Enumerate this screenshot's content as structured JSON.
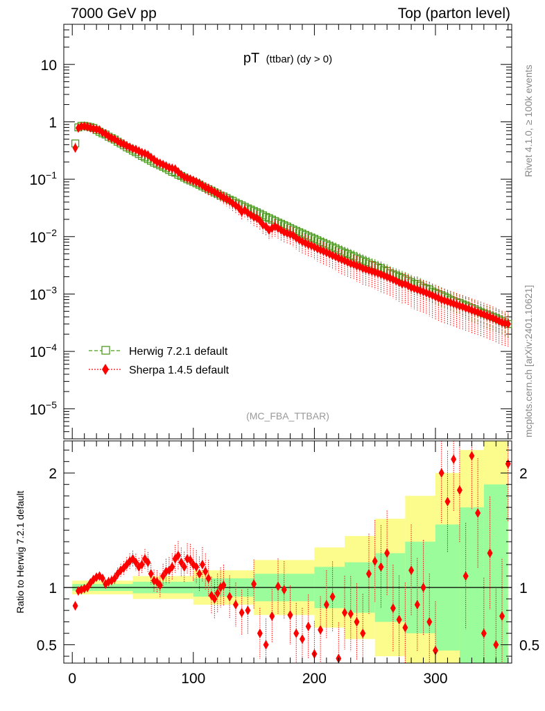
{
  "header": {
    "left": "7000 GeV pp",
    "right": "Top (parton level)"
  },
  "side_text": {
    "rivet": "Rivet 4.1.0, ≥ 100k events",
    "mcplots": "mcplots.cern.ch [arXiv:2401.10621]"
  },
  "colors": {
    "herwig": "#4a9a1e",
    "sherpa": "#ff0000",
    "band_inner": "#9afc9a",
    "band_outer": "#fcfc8c"
  },
  "chart_data": [
    {
      "type": "scatter",
      "title_main": "pT",
      "title_sub": "(ttbar)  (dy > 0)",
      "analysis_label": "(MC_FBA_TTBAR)",
      "yscale": "log",
      "ylim": [
        3e-06,
        50
      ],
      "xlim": [
        -7,
        363
      ],
      "ytick_labels": [
        "10^-5",
        "10^-4",
        "10^-3",
        "10^-2",
        "10^-1",
        "1",
        "10"
      ],
      "legend_position": "lower-left",
      "x": [
        2.5,
        5,
        7.5,
        10,
        12.5,
        15,
        17.5,
        20,
        22.5,
        25,
        27.5,
        30,
        32.5,
        35,
        37.5,
        40,
        42.5,
        45,
        47.5,
        50,
        52.5,
        55,
        57.5,
        60,
        62.5,
        65,
        67.5,
        70,
        72.5,
        75,
        77.5,
        80,
        82.5,
        85,
        87.5,
        90,
        92.5,
        95,
        97.5,
        100,
        102.5,
        105,
        107.5,
        110,
        112.5,
        115,
        117.5,
        120,
        122.5,
        125,
        127.5,
        130,
        132.5,
        135,
        137.5,
        140,
        142.5,
        145,
        147.5,
        150,
        152.5,
        155,
        157.5,
        160,
        162.5,
        165,
        167.5,
        170,
        172.5,
        175,
        177.5,
        180,
        182.5,
        185,
        187.5,
        190,
        192.5,
        195,
        197.5,
        200,
        202.5,
        205,
        207.5,
        210,
        212.5,
        215,
        217.5,
        220,
        222.5,
        225,
        227.5,
        230,
        232.5,
        235,
        237.5,
        240,
        242.5,
        245,
        247.5,
        250,
        252.5,
        255,
        257.5,
        260,
        262.5,
        265,
        267.5,
        270,
        272.5,
        275,
        277.5,
        280,
        282.5,
        285,
        287.5,
        290,
        292.5,
        295,
        297.5,
        300,
        302.5,
        305,
        307.5,
        310,
        312.5,
        315,
        317.5,
        320,
        322.5,
        325,
        327.5,
        330,
        332.5,
        335,
        337.5,
        340,
        342.5,
        345,
        347.5,
        350,
        352.5,
        355,
        357.5,
        360
      ],
      "series": [
        {
          "name": "Herwig 7.2.1 default",
          "marker": "open-square",
          "line": "dashed",
          "values": [
            0.42,
            0.8,
            0.85,
            0.85,
            0.83,
            0.81,
            0.78,
            0.72,
            0.67,
            0.63,
            0.6,
            0.55,
            0.52,
            0.49,
            0.45,
            0.42,
            0.39,
            0.36,
            0.34,
            0.315,
            0.295,
            0.275,
            0.255,
            0.24,
            0.225,
            0.21,
            0.195,
            0.185,
            0.175,
            0.165,
            0.155,
            0.145,
            0.135,
            0.13,
            0.12,
            0.114,
            0.107,
            0.1,
            0.095,
            0.09,
            0.085,
            0.08,
            0.075,
            0.071,
            0.067,
            0.063,
            0.059,
            0.056,
            0.052,
            0.05,
            0.047,
            0.044,
            0.042,
            0.039,
            0.037,
            0.035,
            0.033,
            0.031,
            0.0295,
            0.028,
            0.0265,
            0.025,
            0.0235,
            0.022,
            0.021,
            0.0198,
            0.0187,
            0.0176,
            0.0167,
            0.0158,
            0.015,
            0.0141,
            0.0133,
            0.0126,
            0.0119,
            0.0113,
            0.0107,
            0.0101,
            0.0096,
            0.0091,
            0.0086,
            0.0081,
            0.0077,
            0.0073,
            0.0069,
            0.0065,
            0.0062,
            0.0058,
            0.0055,
            0.0052,
            0.005,
            0.0047,
            0.0045,
            0.0042,
            0.004,
            0.0038,
            0.0036,
            0.0034,
            0.0032,
            0.0031,
            0.0029,
            0.0028,
            0.0026,
            0.0025,
            0.0023,
            0.0022,
            0.0021,
            0.002,
            0.0019,
            0.0018,
            0.0017,
            0.0016,
            0.0015,
            0.0015,
            0.0014,
            0.0013,
            0.00125,
            0.0012,
            0.0011,
            0.00105,
            0.001,
            0.00095,
            0.0009,
            0.00085,
            0.0008,
            0.00076,
            0.00072,
            0.0007,
            0.00066,
            0.00063,
            0.0006,
            0.00057,
            0.00054,
            0.00051,
            0.00048,
            0.00046,
            0.00044,
            0.00042,
            0.0004,
            0.00038,
            0.00036,
            0.00034,
            0.00032,
            0.0003
          ]
        },
        {
          "name": "Sherpa 1.4.5 default",
          "marker": "filled-diamond",
          "line": "dotted",
          "values": [
            0.35,
            0.78,
            0.83,
            0.84,
            0.82,
            0.79,
            0.76,
            0.74,
            0.72,
            0.65,
            0.62,
            0.56,
            0.52,
            0.5,
            0.46,
            0.43,
            0.41,
            0.38,
            0.36,
            0.34,
            0.33,
            0.31,
            0.29,
            0.28,
            0.265,
            0.24,
            0.22,
            0.2,
            0.19,
            0.18,
            0.17,
            0.16,
            0.155,
            0.15,
            0.135,
            0.12,
            0.11,
            0.105,
            0.1,
            0.095,
            0.09,
            0.085,
            0.078,
            0.072,
            0.068,
            0.064,
            0.06,
            0.056,
            0.052,
            0.048,
            0.045,
            0.042,
            0.038,
            0.035,
            0.032,
            0.027,
            0.029,
            0.026,
            0.024,
            0.022,
            0.021,
            0.019,
            0.016,
            0.015,
            0.013,
            0.014,
            0.015,
            0.014,
            0.013,
            0.012,
            0.0115,
            0.011,
            0.0105,
            0.0095,
            0.0088,
            0.0082,
            0.0078,
            0.0073,
            0.007,
            0.0066,
            0.0062,
            0.0059,
            0.0056,
            0.0053,
            0.005,
            0.0047,
            0.0045,
            0.0042,
            0.004,
            0.0038,
            0.0036,
            0.0034,
            0.0033,
            0.0031,
            0.003,
            0.0028,
            0.0027,
            0.0026,
            0.0025,
            0.0024,
            0.0023,
            0.0022,
            0.0021,
            0.002,
            0.0019,
            0.0018,
            0.0017,
            0.0016,
            0.0015,
            0.0015,
            0.0014,
            0.0013,
            0.00125,
            0.0012,
            0.00115,
            0.0011,
            0.00105,
            0.001,
            0.00095,
            0.0009,
            0.00085,
            0.0008,
            0.00077,
            0.00074,
            0.00071,
            0.00068,
            0.00065,
            0.00062,
            0.0006,
            0.00057,
            0.00055,
            0.00052,
            0.0005,
            0.00048,
            0.00046,
            0.00044,
            0.00042,
            0.0004,
            0.00038,
            0.00036,
            0.00034,
            0.00032,
            0.00031,
            0.0003
          ]
        }
      ]
    },
    {
      "type": "scatter",
      "ylabel": "Ratio to Herwig 7.2.1 default",
      "xlim": [
        -7,
        363
      ],
      "ylim": [
        0.34,
        2.28
      ],
      "xtick_labels": [
        "0",
        "100",
        "200",
        "300"
      ],
      "ytick_labels": [
        "0.5",
        "1",
        "2"
      ],
      "ref_line": 1,
      "band_edges": [
        0,
        50,
        100,
        150,
        200,
        225,
        250,
        275,
        300,
        320,
        340,
        360
      ],
      "band_inner": [
        0.03,
        0.05,
        0.08,
        0.12,
        0.18,
        0.22,
        0.3,
        0.4,
        0.55,
        0.7,
        0.9
      ],
      "band_outer": [
        0.06,
        0.1,
        0.15,
        0.24,
        0.35,
        0.45,
        0.6,
        0.8,
        1.0,
        1.2,
        1.5
      ],
      "series": [
        {
          "name": "Sherpa 1.4.5 default",
          "x": [
            2.5,
            5,
            7.5,
            10,
            12.5,
            15,
            17.5,
            20,
            22.5,
            25,
            27.5,
            30,
            32.5,
            35,
            37.5,
            40,
            42.5,
            45,
            47.5,
            50,
            52.5,
            55,
            57.5,
            60,
            62.5,
            65,
            67.5,
            70,
            72.5,
            75,
            77.5,
            80,
            82.5,
            85,
            87.5,
            90,
            92.5,
            95,
            97.5,
            100,
            102.5,
            105,
            107.5,
            110,
            112.5,
            115,
            117.5,
            120,
            122.5,
            125,
            130,
            135,
            140,
            145,
            150,
            155,
            160,
            165,
            170,
            175,
            180,
            185,
            190,
            195,
            200,
            205,
            210,
            215,
            220,
            225,
            230,
            235,
            240,
            245,
            250,
            255,
            260,
            265,
            270,
            275,
            280,
            285,
            290,
            295,
            300,
            305,
            310,
            315,
            320,
            325,
            330,
            335,
            340,
            345,
            350,
            355,
            360
          ],
          "values": [
            0.84,
            0.97,
            0.98,
            0.99,
            1.0,
            1.04,
            1.07,
            1.09,
            1.1,
            1.08,
            1.03,
            1.05,
            1.06,
            1.08,
            1.12,
            1.15,
            1.17,
            1.2,
            1.23,
            1.25,
            1.22,
            1.18,
            1.2,
            1.25,
            1.22,
            1.12,
            1.06,
            1.05,
            1.02,
            1.1,
            1.14,
            1.15,
            1.18,
            1.25,
            1.28,
            1.22,
            1.18,
            1.25,
            1.24,
            1.2,
            1.18,
            1.12,
            1.2,
            1.14,
            1.08,
            0.93,
            0.9,
            0.95,
            1.0,
            1.02,
            0.92,
            0.85,
            0.78,
            0.8,
            1.03,
            0.6,
            0.5,
            0.75,
            1.01,
            0.98,
            0.76,
            0.6,
            0.55,
            0.66,
            0.42,
            0.63,
            0.85,
            0.92,
            0.38,
            0.78,
            0.77,
            0.7,
            0.6,
            1.12,
            1.23,
            1.18,
            1.3,
            0.82,
            0.72,
            0.65,
            1.15,
            0.85,
            1.0,
            0.7,
            0.45,
            2.0,
            1.75,
            2.12,
            1.85,
            1.1,
            2.15,
            1.65,
            0.6,
            1.3,
            0.5,
            0.75,
            2.08
          ]
        }
      ]
    }
  ]
}
